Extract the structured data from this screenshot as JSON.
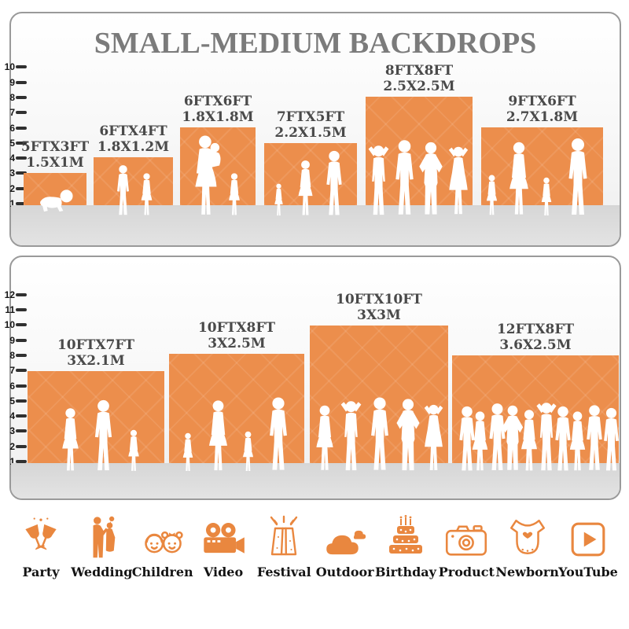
{
  "title": "SMALL-MEDIUM BACKDROPS",
  "colors": {
    "accent": "#EC8E4C",
    "icon_accent": "#E9873F",
    "title_gray": "#7b7b7b",
    "label_gray": "#4a4a4a"
  },
  "panels": [
    {
      "name": "small-medium-sizes",
      "ruler": [
        "1",
        "2",
        "3",
        "4",
        "5",
        "6",
        "7",
        "8",
        "9",
        "10"
      ],
      "backdrops": [
        {
          "size_ft": "5FTX3FT",
          "size_m": "1.5X1M",
          "figures": "crawling-baby"
        },
        {
          "size_ft": "6FTX4FT",
          "size_m": "1.8X1.2M",
          "figures": "boy-and-girl"
        },
        {
          "size_ft": "6FTX6FT",
          "size_m": "1.8X1.8M",
          "figures": "mother-holding-child-and-girl"
        },
        {
          "size_ft": "7FTX5FT",
          "size_m": "2.2X1.5M",
          "figures": "toddler-woman-man"
        },
        {
          "size_ft": "8FTX8FT",
          "size_m": "2.5X2.5M",
          "figures": "four-adults-posing"
        },
        {
          "size_ft": "9FTX6FT",
          "size_m": "2.7X1.8M",
          "figures": "family-of-four-holding-hands"
        }
      ]
    },
    {
      "name": "large-sizes",
      "ruler": [
        "1",
        "2",
        "3",
        "4",
        "5",
        "6",
        "7",
        "8",
        "9",
        "10",
        "11",
        "12"
      ],
      "backdrops": [
        {
          "size_ft": "10FTX7FT",
          "size_m": "3X2.1M",
          "figures": "woman-man-girl"
        },
        {
          "size_ft": "10FTX8FT",
          "size_m": "3X2.5M",
          "figures": "family-of-four-holding-hands"
        },
        {
          "size_ft": "10FTX10FT",
          "size_m": "3X3M",
          "figures": "five-adults-posing"
        },
        {
          "size_ft": "12FTX8FT",
          "size_m": "3.6X2.5M",
          "figures": "crowd-of-ten"
        }
      ]
    }
  ],
  "categories": [
    {
      "label": "Party",
      "icon": "party-icon"
    },
    {
      "label": "Wedding",
      "icon": "wedding-icon"
    },
    {
      "label": "Children",
      "icon": "children-icon"
    },
    {
      "label": "Video",
      "icon": "video-icon"
    },
    {
      "label": "Festival",
      "icon": "festival-icon"
    },
    {
      "label": "Outdoor",
      "icon": "outdoor-icon"
    },
    {
      "label": "Birthday",
      "icon": "birthday-icon"
    },
    {
      "label": "Product",
      "icon": "product-icon"
    },
    {
      "label": "Newborn",
      "icon": "newborn-icon"
    },
    {
      "label": "YouTube",
      "icon": "youtube-icon"
    }
  ],
  "chart_data": [
    {
      "type": "bar",
      "title": "SMALL-MEDIUM BACKDROPS",
      "categories": [
        "5FTX3FT",
        "6FTX4FT",
        "6FTX6FT",
        "7FTX5FT",
        "8FTX8FT",
        "9FTX6FT"
      ],
      "series": [
        {
          "name": "width_ft",
          "values": [
            5,
            6,
            6,
            7,
            8,
            9
          ]
        },
        {
          "name": "height_ft",
          "values": [
            3,
            4,
            6,
            5,
            8,
            6
          ]
        }
      ],
      "metric_labels": [
        "1.5X1M",
        "1.8X1.2M",
        "1.8X1.8M",
        "2.2X1.5M",
        "2.5X2.5M",
        "2.7X1.8M"
      ],
      "ylabel": "feet",
      "ylim": [
        0,
        10
      ],
      "legend": "none",
      "grid": "ruler-ticks"
    },
    {
      "type": "bar",
      "title": "",
      "categories": [
        "10FTX7FT",
        "10FTX8FT",
        "10FTX10FT",
        "12FTX8FT"
      ],
      "series": [
        {
          "name": "width_ft",
          "values": [
            10,
            10,
            10,
            12
          ]
        },
        {
          "name": "height_ft",
          "values": [
            7,
            8,
            10,
            8
          ]
        }
      ],
      "metric_labels": [
        "3X2.1M",
        "3X2.5M",
        "3X3M",
        "3.6X2.5M"
      ],
      "ylabel": "feet",
      "ylim": [
        0,
        12
      ],
      "legend": "none",
      "grid": "ruler-ticks"
    }
  ]
}
